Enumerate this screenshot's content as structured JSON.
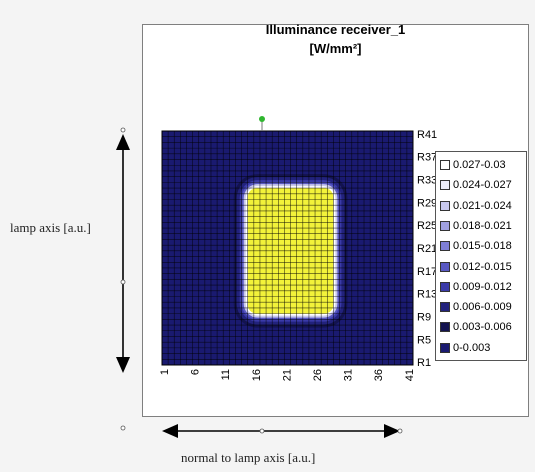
{
  "chart_data": {
    "type": "heatmap",
    "title": "Illuminance receiver_1",
    "unit": "[W/mm²]",
    "grid_size": [
      41,
      41
    ],
    "x_ticks": [
      "1",
      "6",
      "11",
      "16",
      "21",
      "26",
      "31",
      "36",
      "41"
    ],
    "y_ticks": [
      "R41",
      "R37",
      "R33",
      "R29",
      "R25",
      "R21",
      "R17",
      "R13",
      "R9",
      "R5",
      "R1"
    ],
    "legend": [
      {
        "label": "0.027-0.03",
        "color": "#ffffff"
      },
      {
        "label": "0.024-0.027",
        "color": "#ececf8"
      },
      {
        "label": "0.021-0.024",
        "color": "#c8c8ee"
      },
      {
        "label": "0.018-0.021",
        "color": "#a0a0e0"
      },
      {
        "label": "0.015-0.018",
        "color": "#7f7fd6"
      },
      {
        "label": "0.012-0.015",
        "color": "#5858c2"
      },
      {
        "label": "0.009-0.012",
        "color": "#3a3aa8"
      },
      {
        "label": "0.006-0.009",
        "color": "#22227c"
      },
      {
        "label": "0.003-0.006",
        "color": "#13134f"
      },
      {
        "label": "0-0.003",
        "color": "#1a1a70"
      }
    ],
    "hot_region": {
      "x_range": [
        15,
        28
      ],
      "y_range": [
        10,
        31
      ],
      "color": "#f2f23a"
    },
    "background_color": "#1a1a70",
    "grid_line_color": "#000000"
  },
  "labels": {
    "y_axis": "lamp axis [a.u.]",
    "x_axis": "normal to lamp axis [a.u.]"
  }
}
